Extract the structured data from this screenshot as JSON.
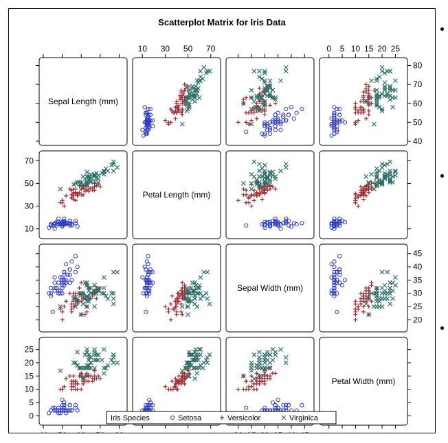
{
  "chart_data": {
    "type": "scatter",
    "title": "Scatterplot Matrix for Iris Data",
    "variables": [
      {
        "key": "sl",
        "label": "Sepal Length (mm)",
        "range": [
          40,
          82
        ],
        "ticks": [
          40,
          50,
          60,
          70,
          80
        ]
      },
      {
        "key": "pl",
        "label": "Petal Length (mm)",
        "range": [
          5,
          75
        ],
        "ticks": [
          10,
          30,
          50,
          70
        ]
      },
      {
        "key": "sw",
        "label": "Sepal Width (mm)",
        "range": [
          17,
          47
        ],
        "ticks": [
          20,
          25,
          30,
          35,
          40,
          45
        ]
      },
      {
        "key": "pw",
        "label": "Petal Width (mm)",
        "range": [
          -2,
          28
        ],
        "ticks": [
          0,
          5,
          10,
          15,
          20,
          25
        ]
      }
    ],
    "grid": false,
    "legend": {
      "title": "Iris Species",
      "placement": "bottom"
    },
    "series": [
      {
        "name": "Setosa",
        "marker": "circle",
        "color": "#2e3bc6",
        "points": [
          [
            51,
            14,
            35,
            2
          ],
          [
            49,
            14,
            30,
            2
          ],
          [
            47,
            13,
            32,
            2
          ],
          [
            46,
            15,
            31,
            2
          ],
          [
            50,
            14,
            36,
            2
          ],
          [
            54,
            17,
            39,
            4
          ],
          [
            46,
            14,
            34,
            3
          ],
          [
            50,
            15,
            34,
            2
          ],
          [
            44,
            14,
            29,
            2
          ],
          [
            49,
            15,
            31,
            1
          ],
          [
            54,
            15,
            37,
            2
          ],
          [
            48,
            16,
            34,
            2
          ],
          [
            48,
            14,
            30,
            1
          ],
          [
            43,
            11,
            30,
            1
          ],
          [
            58,
            12,
            40,
            2
          ],
          [
            57,
            15,
            44,
            4
          ],
          [
            54,
            13,
            39,
            4
          ],
          [
            51,
            14,
            35,
            3
          ],
          [
            57,
            17,
            38,
            3
          ],
          [
            51,
            15,
            38,
            3
          ],
          [
            54,
            17,
            34,
            2
          ],
          [
            51,
            15,
            37,
            4
          ],
          [
            46,
            10,
            36,
            2
          ],
          [
            51,
            17,
            33,
            5
          ],
          [
            48,
            19,
            34,
            2
          ],
          [
            50,
            16,
            30,
            2
          ],
          [
            50,
            16,
            34,
            4
          ],
          [
            52,
            15,
            35,
            2
          ],
          [
            52,
            14,
            34,
            2
          ],
          [
            47,
            16,
            32,
            2
          ],
          [
            48,
            16,
            31,
            2
          ],
          [
            54,
            15,
            34,
            4
          ],
          [
            52,
            15,
            41,
            1
          ],
          [
            55,
            14,
            42,
            2
          ],
          [
            49,
            15,
            31,
            2
          ],
          [
            50,
            12,
            32,
            2
          ],
          [
            55,
            13,
            35,
            2
          ],
          [
            49,
            14,
            36,
            1
          ],
          [
            44,
            13,
            30,
            2
          ],
          [
            51,
            15,
            34,
            2
          ],
          [
            50,
            13,
            35,
            3
          ],
          [
            45,
            13,
            23,
            3
          ],
          [
            44,
            13,
            32,
            2
          ],
          [
            50,
            16,
            35,
            6
          ],
          [
            51,
            19,
            38,
            4
          ],
          [
            48,
            14,
            30,
            3
          ],
          [
            51,
            16,
            38,
            2
          ],
          [
            46,
            14,
            32,
            2
          ],
          [
            53,
            15,
            37,
            2
          ],
          [
            50,
            14,
            33,
            2
          ]
        ]
      },
      {
        "name": "Versicolor",
        "marker": "plus",
        "color": "#9e2a2f",
        "points": [
          [
            70,
            47,
            32,
            14
          ],
          [
            64,
            45,
            32,
            15
          ],
          [
            69,
            49,
            31,
            15
          ],
          [
            55,
            40,
            23,
            13
          ],
          [
            65,
            46,
            28,
            15
          ],
          [
            57,
            45,
            28,
            13
          ],
          [
            63,
            47,
            33,
            16
          ],
          [
            49,
            33,
            24,
            10
          ],
          [
            66,
            46,
            29,
            13
          ],
          [
            52,
            39,
            27,
            14
          ],
          [
            50,
            35,
            20,
            10
          ],
          [
            59,
            42,
            30,
            15
          ],
          [
            60,
            40,
            22,
            10
          ],
          [
            61,
            47,
            29,
            14
          ],
          [
            56,
            36,
            29,
            13
          ],
          [
            67,
            44,
            31,
            14
          ],
          [
            56,
            45,
            30,
            15
          ],
          [
            58,
            41,
            27,
            10
          ],
          [
            62,
            45,
            22,
            15
          ],
          [
            56,
            39,
            25,
            11
          ],
          [
            59,
            48,
            32,
            18
          ],
          [
            61,
            40,
            28,
            13
          ],
          [
            63,
            49,
            25,
            15
          ],
          [
            61,
            47,
            28,
            12
          ],
          [
            64,
            43,
            29,
            13
          ],
          [
            66,
            44,
            30,
            14
          ],
          [
            68,
            48,
            28,
            14
          ],
          [
            67,
            50,
            30,
            17
          ],
          [
            60,
            45,
            29,
            15
          ],
          [
            57,
            35,
            26,
            10
          ],
          [
            55,
            38,
            24,
            11
          ],
          [
            55,
            37,
            24,
            10
          ],
          [
            58,
            39,
            27,
            12
          ],
          [
            60,
            51,
            27,
            16
          ],
          [
            54,
            45,
            30,
            15
          ],
          [
            60,
            45,
            34,
            16
          ],
          [
            67,
            47,
            31,
            15
          ],
          [
            63,
            44,
            23,
            13
          ],
          [
            56,
            41,
            30,
            13
          ],
          [
            55,
            40,
            25,
            13
          ],
          [
            55,
            44,
            26,
            12
          ],
          [
            61,
            46,
            30,
            14
          ],
          [
            58,
            40,
            26,
            12
          ],
          [
            50,
            33,
            23,
            10
          ],
          [
            56,
            42,
            27,
            13
          ],
          [
            57,
            42,
            30,
            12
          ],
          [
            57,
            42,
            29,
            13
          ],
          [
            62,
            43,
            29,
            13
          ],
          [
            51,
            30,
            25,
            11
          ],
          [
            57,
            41,
            28,
            13
          ]
        ]
      },
      {
        "name": "Virginica",
        "marker": "x",
        "color": "#2d7069",
        "points": [
          [
            63,
            60,
            33,
            25
          ],
          [
            58,
            51,
            27,
            19
          ],
          [
            71,
            59,
            30,
            21
          ],
          [
            63,
            56,
            29,
            18
          ],
          [
            65,
            58,
            30,
            22
          ],
          [
            76,
            66,
            30,
            21
          ],
          [
            49,
            45,
            25,
            17
          ],
          [
            73,
            63,
            29,
            18
          ],
          [
            67,
            58,
            25,
            18
          ],
          [
            72,
            61,
            36,
            25
          ],
          [
            65,
            51,
            32,
            20
          ],
          [
            64,
            53,
            27,
            19
          ],
          [
            68,
            55,
            30,
            21
          ],
          [
            57,
            50,
            25,
            20
          ],
          [
            58,
            51,
            28,
            24
          ],
          [
            64,
            53,
            32,
            23
          ],
          [
            65,
            55,
            30,
            18
          ],
          [
            77,
            67,
            38,
            22
          ],
          [
            77,
            69,
            26,
            23
          ],
          [
            60,
            50,
            22,
            15
          ],
          [
            69,
            57,
            32,
            23
          ],
          [
            56,
            49,
            28,
            20
          ],
          [
            77,
            67,
            28,
            20
          ],
          [
            63,
            49,
            27,
            18
          ],
          [
            67,
            57,
            33,
            21
          ],
          [
            72,
            60,
            32,
            18
          ],
          [
            62,
            48,
            28,
            18
          ],
          [
            61,
            49,
            30,
            18
          ],
          [
            64,
            56,
            28,
            21
          ],
          [
            72,
            58,
            30,
            16
          ],
          [
            74,
            61,
            28,
            19
          ],
          [
            79,
            64,
            38,
            20
          ],
          [
            64,
            56,
            28,
            22
          ],
          [
            63,
            51,
            28,
            15
          ],
          [
            61,
            56,
            26,
            14
          ],
          [
            77,
            61,
            30,
            23
          ],
          [
            63,
            56,
            34,
            24
          ],
          [
            64,
            55,
            31,
            18
          ],
          [
            60,
            48,
            30,
            18
          ],
          [
            69,
            54,
            31,
            21
          ],
          [
            67,
            56,
            31,
            24
          ],
          [
            69,
            51,
            31,
            23
          ],
          [
            58,
            51,
            27,
            19
          ],
          [
            68,
            59,
            32,
            23
          ],
          [
            67,
            57,
            33,
            25
          ],
          [
            67,
            52,
            30,
            23
          ],
          [
            63,
            50,
            25,
            19
          ],
          [
            65,
            52,
            30,
            20
          ],
          [
            62,
            54,
            34,
            23
          ],
          [
            59,
            51,
            30,
            18
          ]
        ]
      }
    ]
  }
}
